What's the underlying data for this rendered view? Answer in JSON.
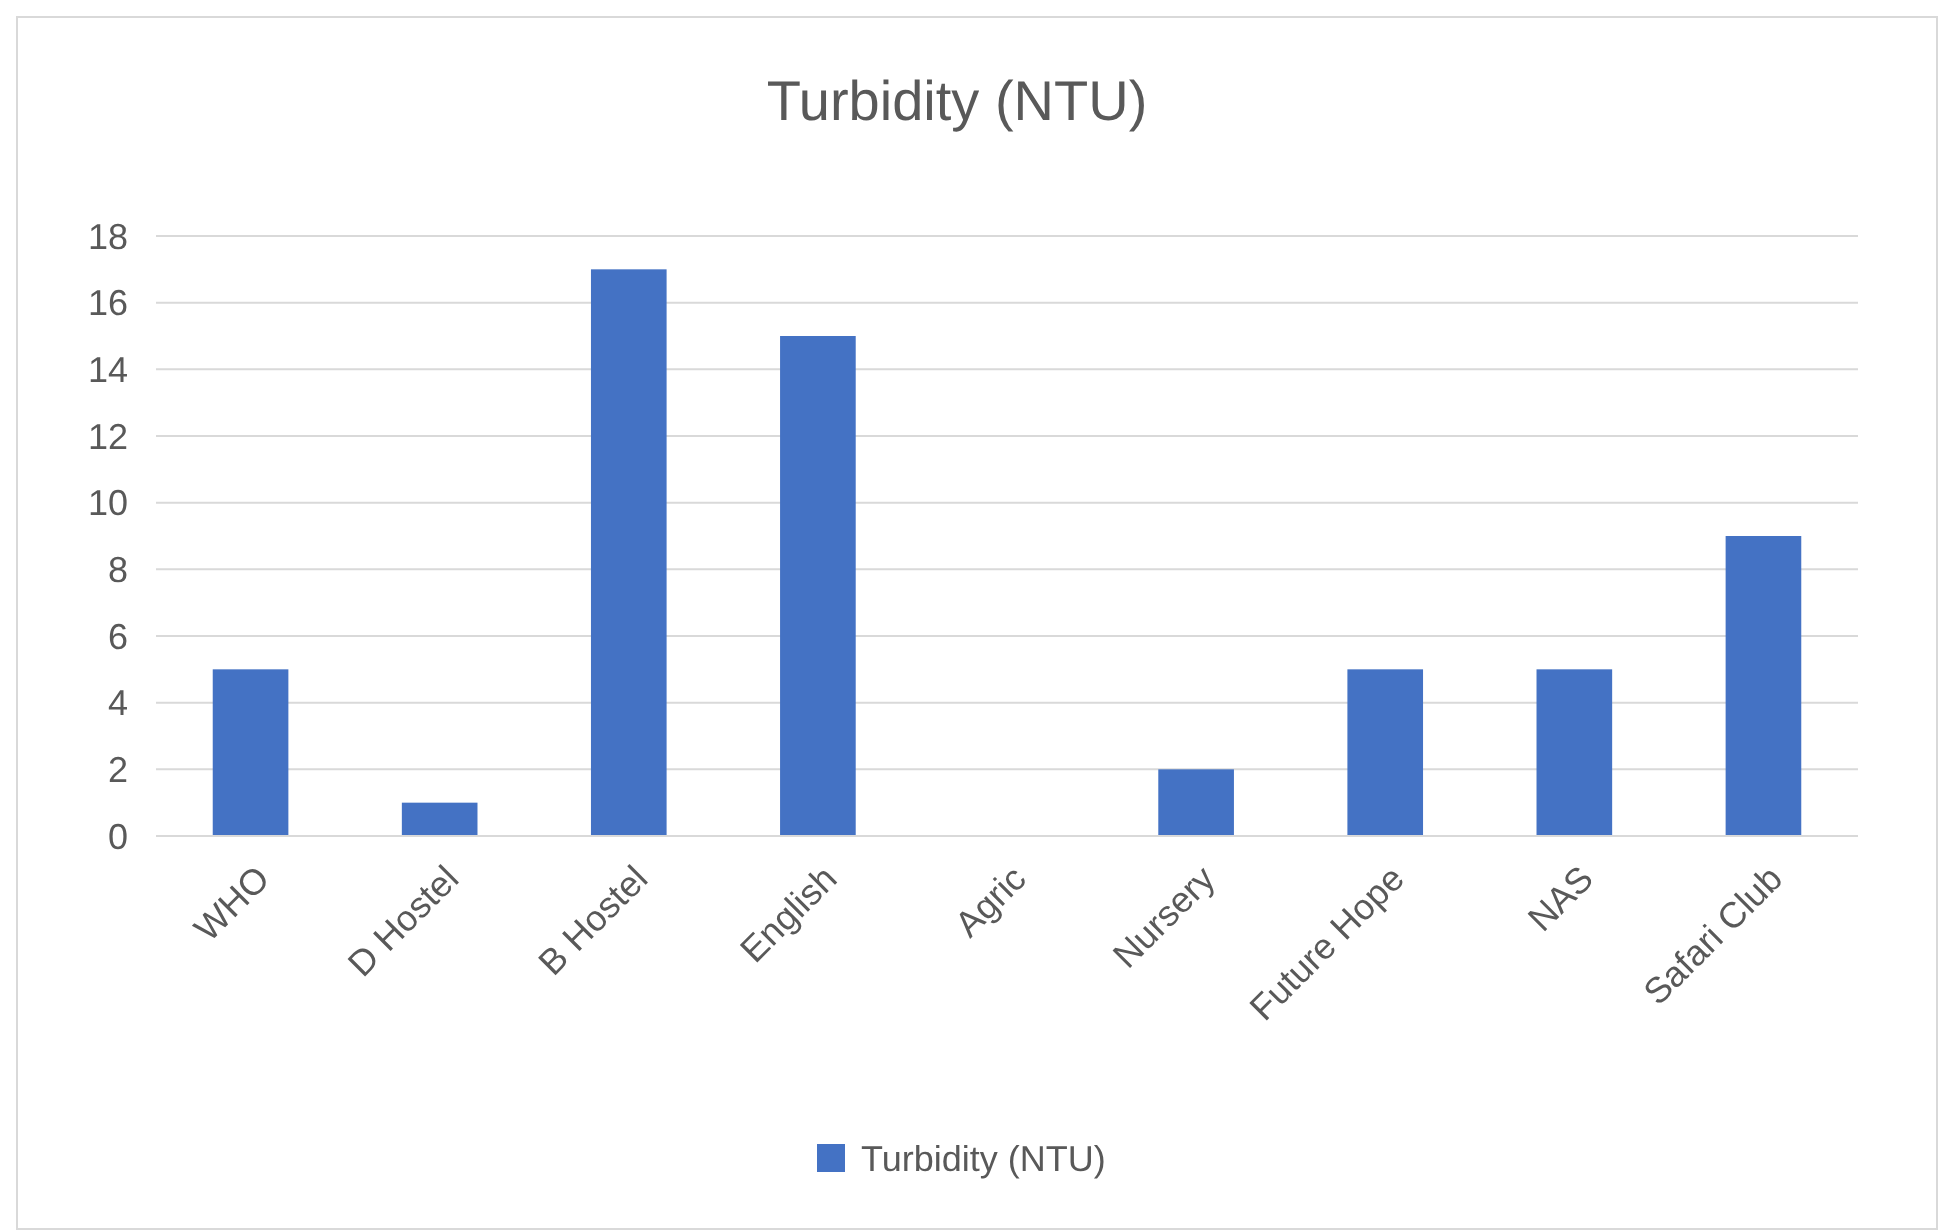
{
  "chart_data": {
    "type": "bar",
    "title": "Turbidity (NTU)",
    "categories": [
      "WHO",
      "D Hostel",
      "B Hostel",
      "English",
      "Agric",
      "Nursery",
      "Future Hope",
      "NAS",
      "Safari Club"
    ],
    "series": [
      {
        "name": "Turbidity (NTU)",
        "color": "#4472c4",
        "values": [
          5,
          1,
          17,
          15,
          0,
          2,
          5,
          5,
          9
        ]
      }
    ],
    "ylim": [
      0,
      18
    ],
    "yticks": [
      0,
      2,
      4,
      6,
      8,
      10,
      12,
      14,
      16,
      18
    ],
    "grid": "y",
    "legend": "bottom"
  }
}
